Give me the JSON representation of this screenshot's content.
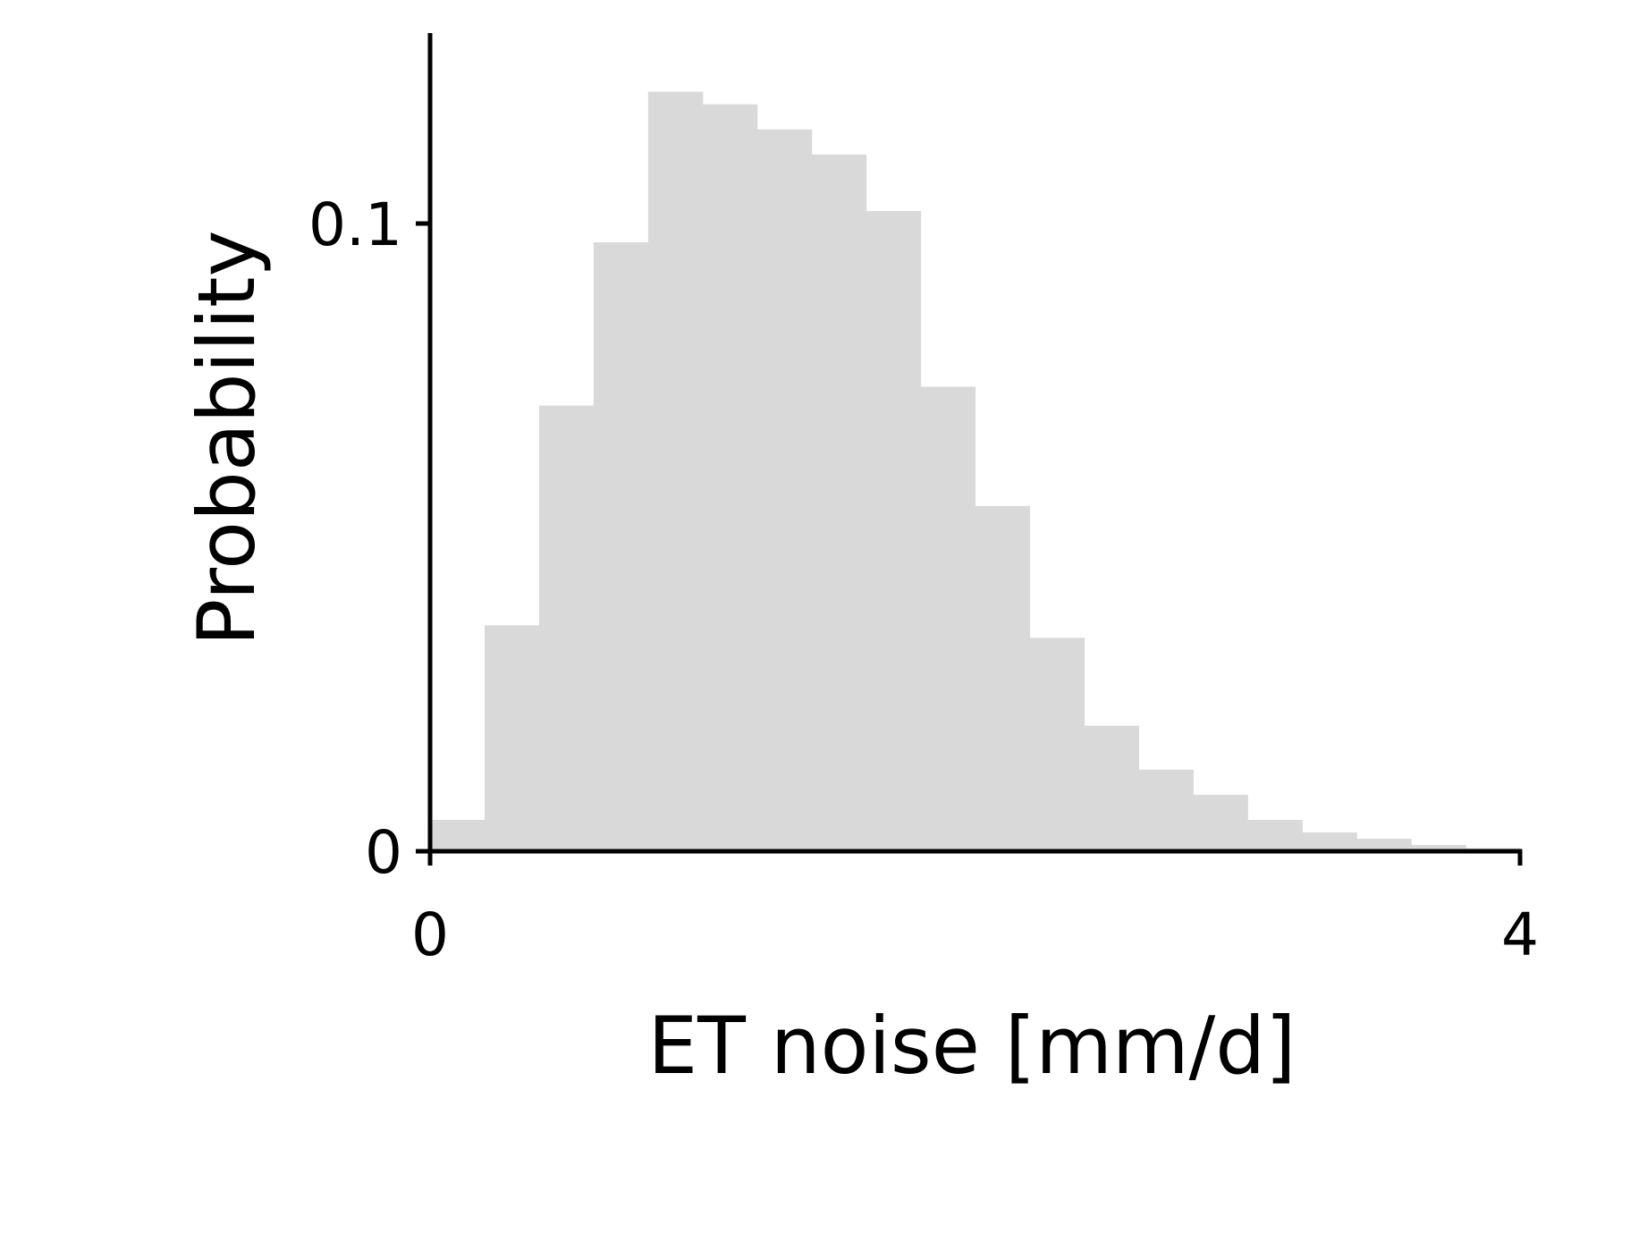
{
  "chart_data": {
    "type": "bar",
    "subtype": "histogram",
    "title": "",
    "xlabel": "ET noise [mm/d]",
    "ylabel": "Probability",
    "xlim": [
      0,
      4
    ],
    "ylim": [
      0,
      0.13
    ],
    "x_ticks": [
      {
        "value": 0,
        "label": "0"
      },
      {
        "value": 4,
        "label": "4"
      }
    ],
    "y_ticks": [
      {
        "value": 0,
        "label": "0"
      },
      {
        "value": 0.1,
        "label": "0.1"
      }
    ],
    "bin_edges": [
      0,
      0.2,
      0.4,
      0.6,
      0.8,
      1.0,
      1.2,
      1.4,
      1.6,
      1.8,
      2.0,
      2.2,
      2.4,
      2.6,
      2.8,
      3.0,
      3.2,
      3.4,
      3.6,
      3.8,
      4.0
    ],
    "values": [
      0.005,
      0.036,
      0.071,
      0.097,
      0.121,
      0.119,
      0.115,
      0.111,
      0.102,
      0.074,
      0.055,
      0.034,
      0.02,
      0.013,
      0.009,
      0.005,
      0.003,
      0.002,
      0.001,
      0.0005
    ],
    "bar_color": "#d9d9d9",
    "axis_color": "#000000",
    "grid": false,
    "legend": "none"
  }
}
